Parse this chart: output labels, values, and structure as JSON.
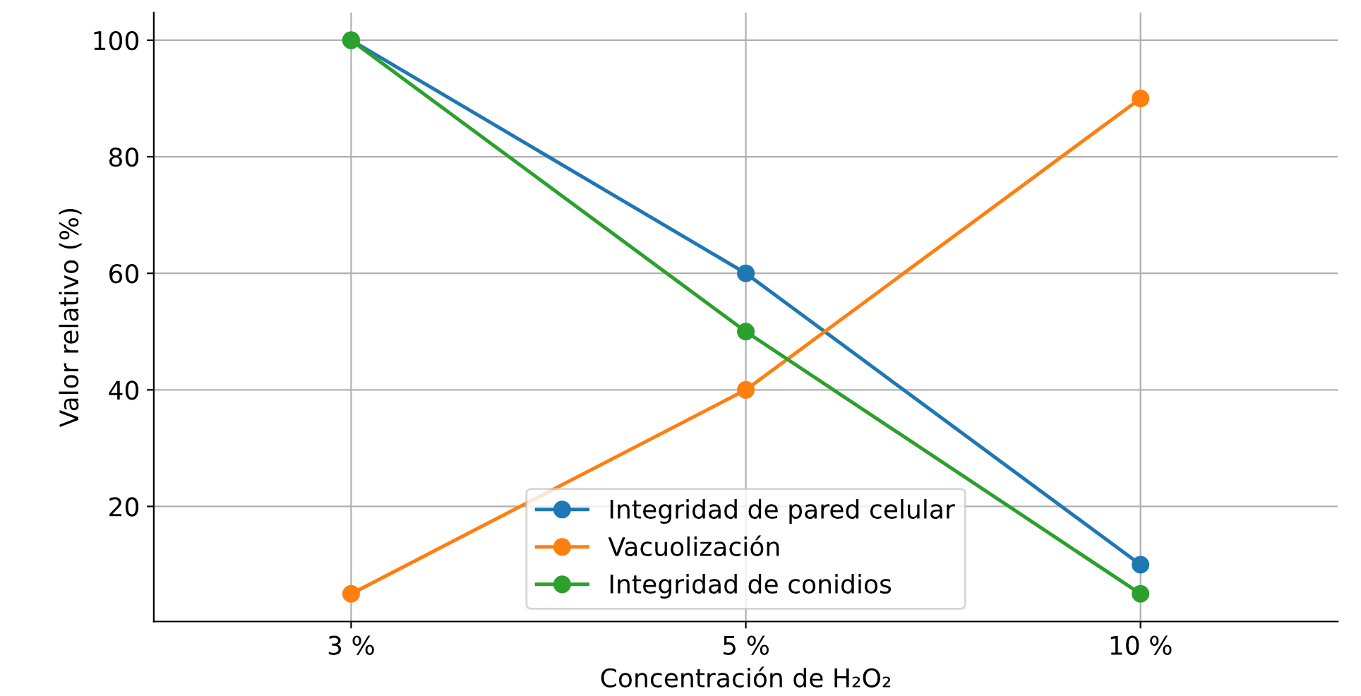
{
  "chart_data": {
    "type": "line",
    "xlabel": "Concentración de H₂O₂",
    "ylabel": "Valor relativo (%)",
    "categories": [
      "3 %",
      "5 %",
      "10 %"
    ],
    "series": [
      {
        "name": "Integridad de pared celular",
        "color": "#1f77b4",
        "values": [
          100,
          60,
          10
        ]
      },
      {
        "name": "Vacuolización",
        "color": "#ff7f0e",
        "values": [
          5,
          40,
          90
        ]
      },
      {
        "name": "Integridad de conidios",
        "color": "#2ca02c",
        "values": [
          100,
          50,
          5
        ]
      }
    ],
    "ylim": [
      0.25,
      104.75
    ],
    "yticks": [
      20,
      40,
      60,
      80,
      100
    ],
    "grid": true,
    "legend": "bottom",
    "marker": "circle",
    "line_style": "solid"
  }
}
